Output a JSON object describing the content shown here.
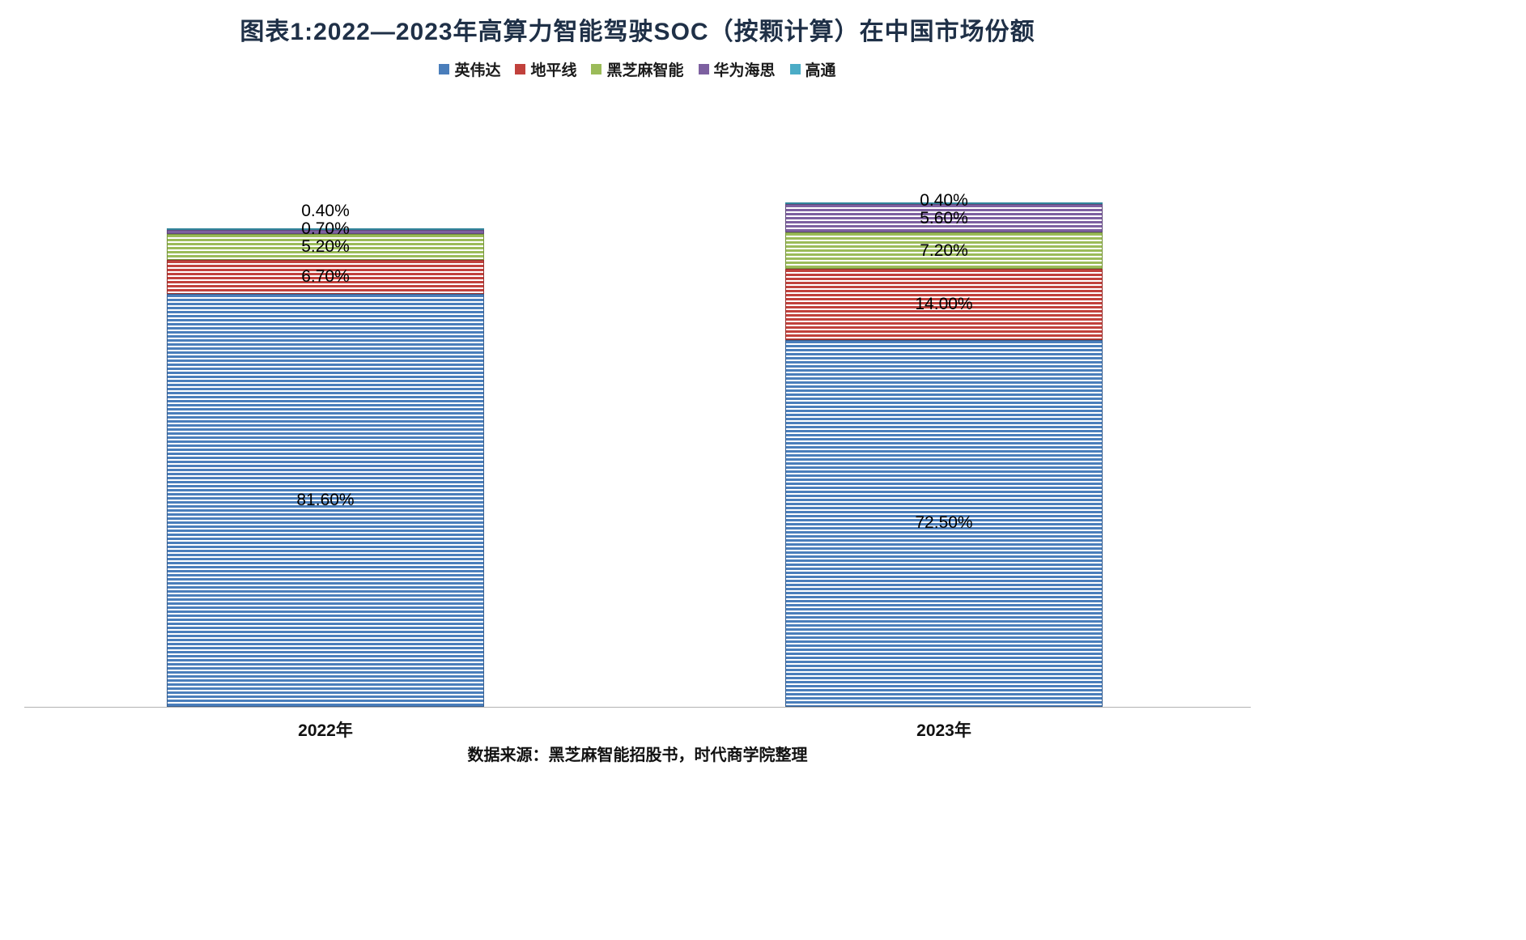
{
  "title": "图表1:2022—2023年高算力智能驾驶SOC（按颗计算）在中国市场份额",
  "source_note": "数据来源：黑芝麻智能招股书，时代商学院整理",
  "chart_data": {
    "type": "bar",
    "stacked": true,
    "orientation": "vertical",
    "grid": false,
    "legend_position": "top",
    "unit": "%",
    "ylim": [
      0,
      100
    ],
    "categories": [
      "2022年",
      "2023年"
    ],
    "series": [
      {
        "name": "英伟达",
        "color": "#4A7EBB",
        "border": "#385E8E",
        "values": [
          81.6,
          72.5
        ],
        "labels": [
          "81.60%",
          "72.50%"
        ]
      },
      {
        "name": "地平线",
        "color": "#C1413C",
        "border": "#96312E",
        "values": [
          6.7,
          14.0
        ],
        "labels": [
          "6.70%",
          "14.00%"
        ]
      },
      {
        "name": "黑芝麻智能",
        "color": "#9BBB59",
        "border": "#77933C",
        "values": [
          5.2,
          7.2
        ],
        "labels": [
          "5.20%",
          "7.20%"
        ]
      },
      {
        "name": "华为海思",
        "color": "#7D60A0",
        "border": "#604A7B",
        "values": [
          0.7,
          5.6
        ],
        "labels": [
          "0.70%",
          "5.60%"
        ]
      },
      {
        "name": "高通",
        "color": "#4BACC6",
        "border": "#31859B",
        "values": [
          0.4,
          0.4
        ],
        "labels": [
          "0.40%",
          "0.40%"
        ]
      }
    ]
  }
}
